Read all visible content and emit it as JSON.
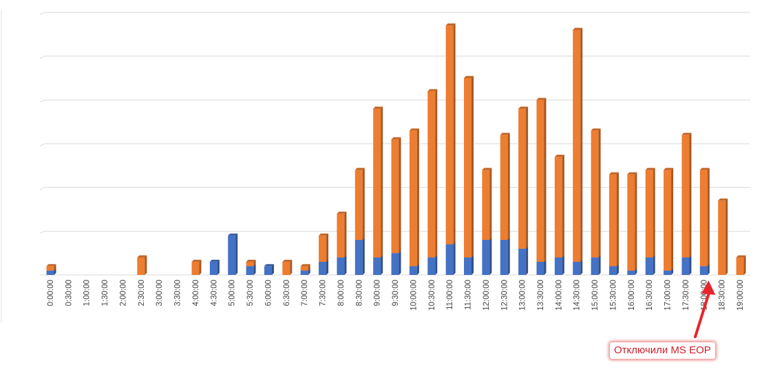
{
  "chart_data": {
    "type": "bar",
    "stacked": true,
    "categories": [
      "0:00:00",
      "0:30:00",
      "1:00:00",
      "1:30:00",
      "2:00:00",
      "2:30:00",
      "3:00:00",
      "3:30:00",
      "4:00:00",
      "4:30:00",
      "5:00:00",
      "5:30:00",
      "6:00:00",
      "6:30:00",
      "7:00:00",
      "7:30:00",
      "8:00:00",
      "8:30:00",
      "9:00:00",
      "9:30:00",
      "10:00:00",
      "10:30:00",
      "11:00:00",
      "11:30:00",
      "12:00:00",
      "12:30:00",
      "13:00:00",
      "13:30:00",
      "14:00:00",
      "14:30:00",
      "15:00:00",
      "15:30:00",
      "16:00:00",
      "16:30:00",
      "17:00:00",
      "17:30:00",
      "18:00:00",
      "18:30:00",
      "19:00:00"
    ],
    "series": [
      {
        "color": "#4472c4",
        "values": [
          1,
          0,
          0,
          0,
          0,
          0,
          0,
          0,
          0,
          3,
          9,
          2,
          2,
          0,
          1,
          3,
          4,
          8,
          4,
          5,
          2,
          4,
          7,
          4,
          8,
          8,
          6,
          3,
          4,
          3,
          4,
          2,
          1,
          4,
          1,
          4,
          2,
          0,
          0
        ]
      },
      {
        "color": "#ed7d31",
        "values": [
          1,
          0,
          0,
          0,
          0,
          4,
          0,
          0,
          3,
          0,
          0,
          1,
          0,
          3,
          1,
          6,
          10,
          16,
          34,
          26,
          31,
          38,
          50,
          41,
          16,
          24,
          32,
          37,
          23,
          53,
          29,
          21,
          22,
          20,
          23,
          28,
          22,
          17,
          4
        ]
      }
    ],
    "ylim": [
      0,
      60
    ],
    "grid": true,
    "annotation": {
      "text": "Отключили MS EOP",
      "category": "18:00:00"
    }
  }
}
